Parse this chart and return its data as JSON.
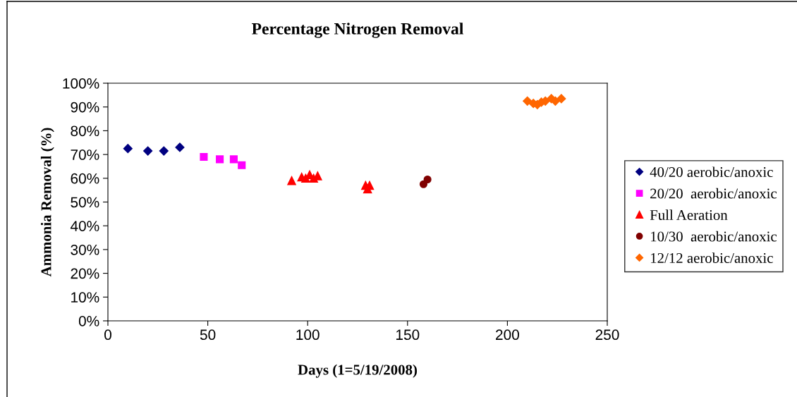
{
  "chart_data": {
    "type": "scatter",
    "title": "Percentage Nitrogen Removal",
    "xlabel": "Days (1=5/19/2008)",
    "ylabel": "Ammonia Removal (%)",
    "xlim": [
      0,
      250
    ],
    "xticks": [
      0,
      50,
      100,
      150,
      200,
      250
    ],
    "ylim": [
      0,
      100
    ],
    "yticks": [
      {
        "value": 0,
        "label": "0%"
      },
      {
        "value": 10,
        "label": "10%"
      },
      {
        "value": 20,
        "label": "20%"
      },
      {
        "value": 30,
        "label": "30%"
      },
      {
        "value": 40,
        "label": "40%"
      },
      {
        "value": 50,
        "label": "50%"
      },
      {
        "value": 60,
        "label": "60%"
      },
      {
        "value": 70,
        "label": "70%"
      },
      {
        "value": 80,
        "label": "80%"
      },
      {
        "value": 90,
        "label": "90%"
      },
      {
        "value": 100,
        "label": "100%"
      }
    ],
    "grid": false,
    "legend": "right",
    "series": [
      {
        "name": "40/20 aerobic/anoxic",
        "color": "#000080",
        "marker": "diamond",
        "x": [
          10,
          20,
          28,
          36
        ],
        "values": [
          72.5,
          71.5,
          71.5,
          73
        ]
      },
      {
        "name": "20/20  aerobic/anoxic",
        "color": "#ff00ff",
        "marker": "square",
        "x": [
          48,
          56,
          63,
          67
        ],
        "values": [
          69,
          68,
          68,
          65.5
        ]
      },
      {
        "name": "Full Aeration",
        "color": "#ff0000",
        "marker": "triangle",
        "x": [
          92,
          97,
          99,
          101,
          103,
          105,
          129,
          130,
          131
        ],
        "values": [
          59,
          60.5,
          60,
          61.5,
          60,
          61,
          57,
          55.5,
          57
        ]
      },
      {
        "name": "10/30  aerobic/anoxic",
        "color": "#800000",
        "marker": "circle",
        "x": [
          158,
          160
        ],
        "values": [
          57.5,
          59.5
        ]
      },
      {
        "name": "12/12 aerobic/anoxic",
        "color": "#ff6600",
        "marker": "diamond",
        "x": [
          210,
          213,
          215,
          217,
          219,
          221,
          222,
          224,
          226,
          227
        ],
        "values": [
          92.5,
          91.5,
          91,
          92,
          92.5,
          null,
          93.5,
          92.5,
          null,
          93.5
        ]
      }
    ]
  }
}
